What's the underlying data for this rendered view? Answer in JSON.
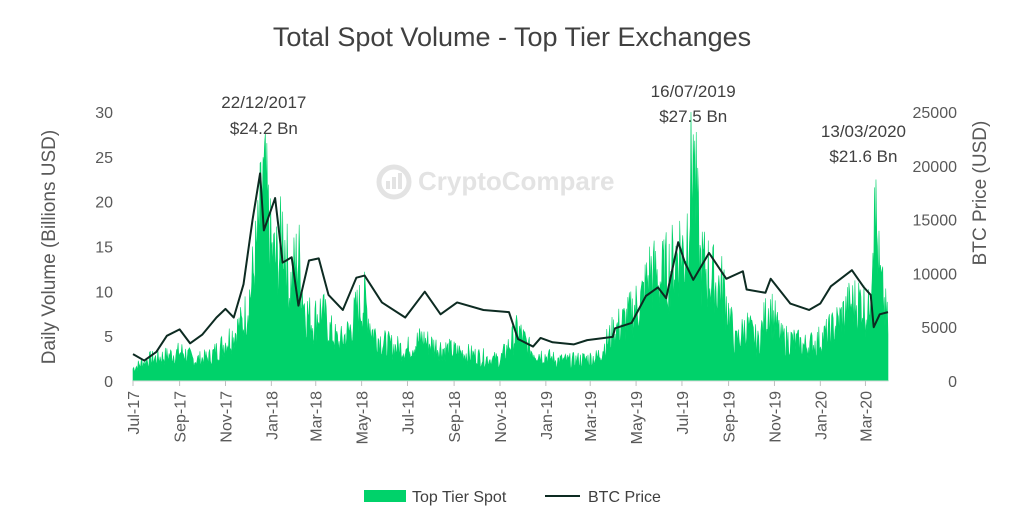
{
  "chart_data": {
    "type": "area",
    "title": "Total Spot Volume - Top Tier Exchanges",
    "ylabel_left": "Daily Volume (Billions USD)",
    "ylabel_right": "BTC Price (USD)",
    "ylim_left": [
      0,
      30
    ],
    "yticks_left": [
      "0",
      "5",
      "10",
      "15",
      "20",
      "25",
      "30"
    ],
    "ylim_right": [
      0,
      25000
    ],
    "yticks_right": [
      "0",
      "5000",
      "10000",
      "15000",
      "20000",
      "25000"
    ],
    "x_ticks": [
      "Jul-17",
      "Sep-17",
      "Nov-17",
      "Jan-18",
      "Mar-18",
      "May-18",
      "Jul-18",
      "Sep-18",
      "Nov-18",
      "Jan-19",
      "Mar-19",
      "May-19",
      "Jul-19",
      "Sep-19",
      "Nov-19",
      "Jan-20",
      "Mar-20"
    ],
    "x_range": [
      "2017-07-01",
      "2020-03-31"
    ],
    "legend_position": "bottom",
    "watermark": "CryptoCompare",
    "colors": {
      "volume": "#00d26a",
      "price": "#0d2b22"
    },
    "annotations": [
      {
        "label_date": "22/12/2017",
        "label_value": "$24.2 Bn",
        "date": "2017-12-22",
        "value": 24.2
      },
      {
        "label_date": "16/07/2019",
        "label_value": "$27.5 Bn",
        "date": "2019-07-16",
        "value": 27.5
      },
      {
        "label_date": "13/03/2020",
        "label_value": "$21.6 Bn",
        "date": "2020-03-13",
        "value": 21.6
      }
    ],
    "series": [
      {
        "name": "Top Tier Spot",
        "type": "area",
        "axis": "left",
        "points": [
          [
            "2017-07-01",
            1.5
          ],
          [
            "2017-07-20",
            2.5
          ],
          [
            "2017-08-15",
            3.0
          ],
          [
            "2017-09-05",
            3.5
          ],
          [
            "2017-09-20",
            2.5
          ],
          [
            "2017-10-10",
            2.8
          ],
          [
            "2017-10-25",
            4.0
          ],
          [
            "2017-11-10",
            5.5
          ],
          [
            "2017-11-25",
            7.0
          ],
          [
            "2017-12-05",
            11.0
          ],
          [
            "2017-12-15",
            17.0
          ],
          [
            "2017-12-22",
            24.2
          ],
          [
            "2018-01-01",
            15.0
          ],
          [
            "2018-01-10",
            14.0
          ],
          [
            "2018-01-17",
            18.5
          ],
          [
            "2018-01-25",
            11.0
          ],
          [
            "2018-02-06",
            15.0
          ],
          [
            "2018-02-15",
            8.5
          ],
          [
            "2018-02-25",
            7.0
          ],
          [
            "2018-03-08",
            8.5
          ],
          [
            "2018-03-20",
            6.0
          ],
          [
            "2018-04-01",
            4.5
          ],
          [
            "2018-04-15",
            6.0
          ],
          [
            "2018-04-25",
            8.5
          ],
          [
            "2018-05-05",
            9.5
          ],
          [
            "2018-05-15",
            6.0
          ],
          [
            "2018-05-30",
            4.5
          ],
          [
            "2018-06-15",
            4.0
          ],
          [
            "2018-06-30",
            3.8
          ],
          [
            "2018-07-20",
            5.0
          ],
          [
            "2018-08-05",
            4.2
          ],
          [
            "2018-08-20",
            3.8
          ],
          [
            "2018-09-10",
            3.4
          ],
          [
            "2018-10-01",
            3.0
          ],
          [
            "2018-10-20",
            2.6
          ],
          [
            "2018-11-01",
            2.5
          ],
          [
            "2018-11-15",
            4.5
          ],
          [
            "2018-11-25",
            6.0
          ],
          [
            "2018-12-10",
            3.8
          ],
          [
            "2018-12-25",
            3.2
          ],
          [
            "2019-01-15",
            2.5
          ],
          [
            "2019-02-01",
            2.4
          ],
          [
            "2019-02-20",
            2.6
          ],
          [
            "2019-03-10",
            2.8
          ],
          [
            "2019-04-02",
            6.0
          ],
          [
            "2019-04-20",
            7.5
          ],
          [
            "2019-05-10",
            10.0
          ],
          [
            "2019-05-20",
            13.0
          ],
          [
            "2019-06-01",
            12.0
          ],
          [
            "2019-06-20",
            14.0
          ],
          [
            "2019-06-27",
            16.0
          ],
          [
            "2019-07-05",
            15.0
          ],
          [
            "2019-07-16",
            27.5
          ],
          [
            "2019-07-25",
            14.0
          ],
          [
            "2019-08-05",
            13.0
          ],
          [
            "2019-08-15",
            11.5
          ],
          [
            "2019-08-25",
            11.0
          ],
          [
            "2019-09-10",
            4.5
          ],
          [
            "2019-09-25",
            6.5
          ],
          [
            "2019-10-10",
            4.5
          ],
          [
            "2019-10-25",
            9.0
          ],
          [
            "2019-11-10",
            5.0
          ],
          [
            "2019-11-25",
            4.8
          ],
          [
            "2019-12-10",
            4.2
          ],
          [
            "2019-12-25",
            4.5
          ],
          [
            "2020-01-10",
            5.5
          ],
          [
            "2020-01-25",
            7.0
          ],
          [
            "2020-02-10",
            9.0
          ],
          [
            "2020-02-25",
            9.5
          ],
          [
            "2020-03-05",
            8.0
          ],
          [
            "2020-03-13",
            21.6
          ],
          [
            "2020-03-20",
            12.0
          ],
          [
            "2020-03-31",
            6.5
          ]
        ]
      },
      {
        "name": "BTC Price",
        "type": "line",
        "axis": "right",
        "points": [
          [
            "2017-07-01",
            2500
          ],
          [
            "2017-07-16",
            1900
          ],
          [
            "2017-08-01",
            2700
          ],
          [
            "2017-08-15",
            4200
          ],
          [
            "2017-09-01",
            4800
          ],
          [
            "2017-09-15",
            3500
          ],
          [
            "2017-10-01",
            4300
          ],
          [
            "2017-10-20",
            5900
          ],
          [
            "2017-11-01",
            6700
          ],
          [
            "2017-11-12",
            5900
          ],
          [
            "2017-11-25",
            9000
          ],
          [
            "2017-12-07",
            15000
          ],
          [
            "2017-12-17",
            19300
          ],
          [
            "2017-12-22",
            14000
          ],
          [
            "2018-01-06",
            17000
          ],
          [
            "2018-01-16",
            11000
          ],
          [
            "2018-01-28",
            11500
          ],
          [
            "2018-02-06",
            7000
          ],
          [
            "2018-02-20",
            11200
          ],
          [
            "2018-03-05",
            11400
          ],
          [
            "2018-03-18",
            8000
          ],
          [
            "2018-04-06",
            6600
          ],
          [
            "2018-04-24",
            9600
          ],
          [
            "2018-05-05",
            9800
          ],
          [
            "2018-05-28",
            7300
          ],
          [
            "2018-06-28",
            5900
          ],
          [
            "2018-07-24",
            8300
          ],
          [
            "2018-08-14",
            6200
          ],
          [
            "2018-09-05",
            7300
          ],
          [
            "2018-10-10",
            6600
          ],
          [
            "2018-11-13",
            6400
          ],
          [
            "2018-11-25",
            3900
          ],
          [
            "2018-12-15",
            3200
          ],
          [
            "2018-12-25",
            4000
          ],
          [
            "2019-01-10",
            3600
          ],
          [
            "2019-02-07",
            3400
          ],
          [
            "2019-02-25",
            3800
          ],
          [
            "2019-03-31",
            4100
          ],
          [
            "2019-04-03",
            4900
          ],
          [
            "2019-04-25",
            5400
          ],
          [
            "2019-05-14",
            7900
          ],
          [
            "2019-05-30",
            8700
          ],
          [
            "2019-06-10",
            7700
          ],
          [
            "2019-06-26",
            12900
          ],
          [
            "2019-07-05",
            11000
          ],
          [
            "2019-07-16",
            9400
          ],
          [
            "2019-08-06",
            11900
          ],
          [
            "2019-08-29",
            9500
          ],
          [
            "2019-09-20",
            10200
          ],
          [
            "2019-09-25",
            8500
          ],
          [
            "2019-10-20",
            8200
          ],
          [
            "2019-10-27",
            9500
          ],
          [
            "2019-11-22",
            7200
          ],
          [
            "2019-12-17",
            6600
          ],
          [
            "2020-01-01",
            7200
          ],
          [
            "2020-01-15",
            8800
          ],
          [
            "2020-02-12",
            10300
          ],
          [
            "2020-02-28",
            8700
          ],
          [
            "2020-03-08",
            8000
          ],
          [
            "2020-03-12",
            5000
          ],
          [
            "2020-03-20",
            6200
          ],
          [
            "2020-03-31",
            6400
          ]
        ]
      }
    ]
  }
}
